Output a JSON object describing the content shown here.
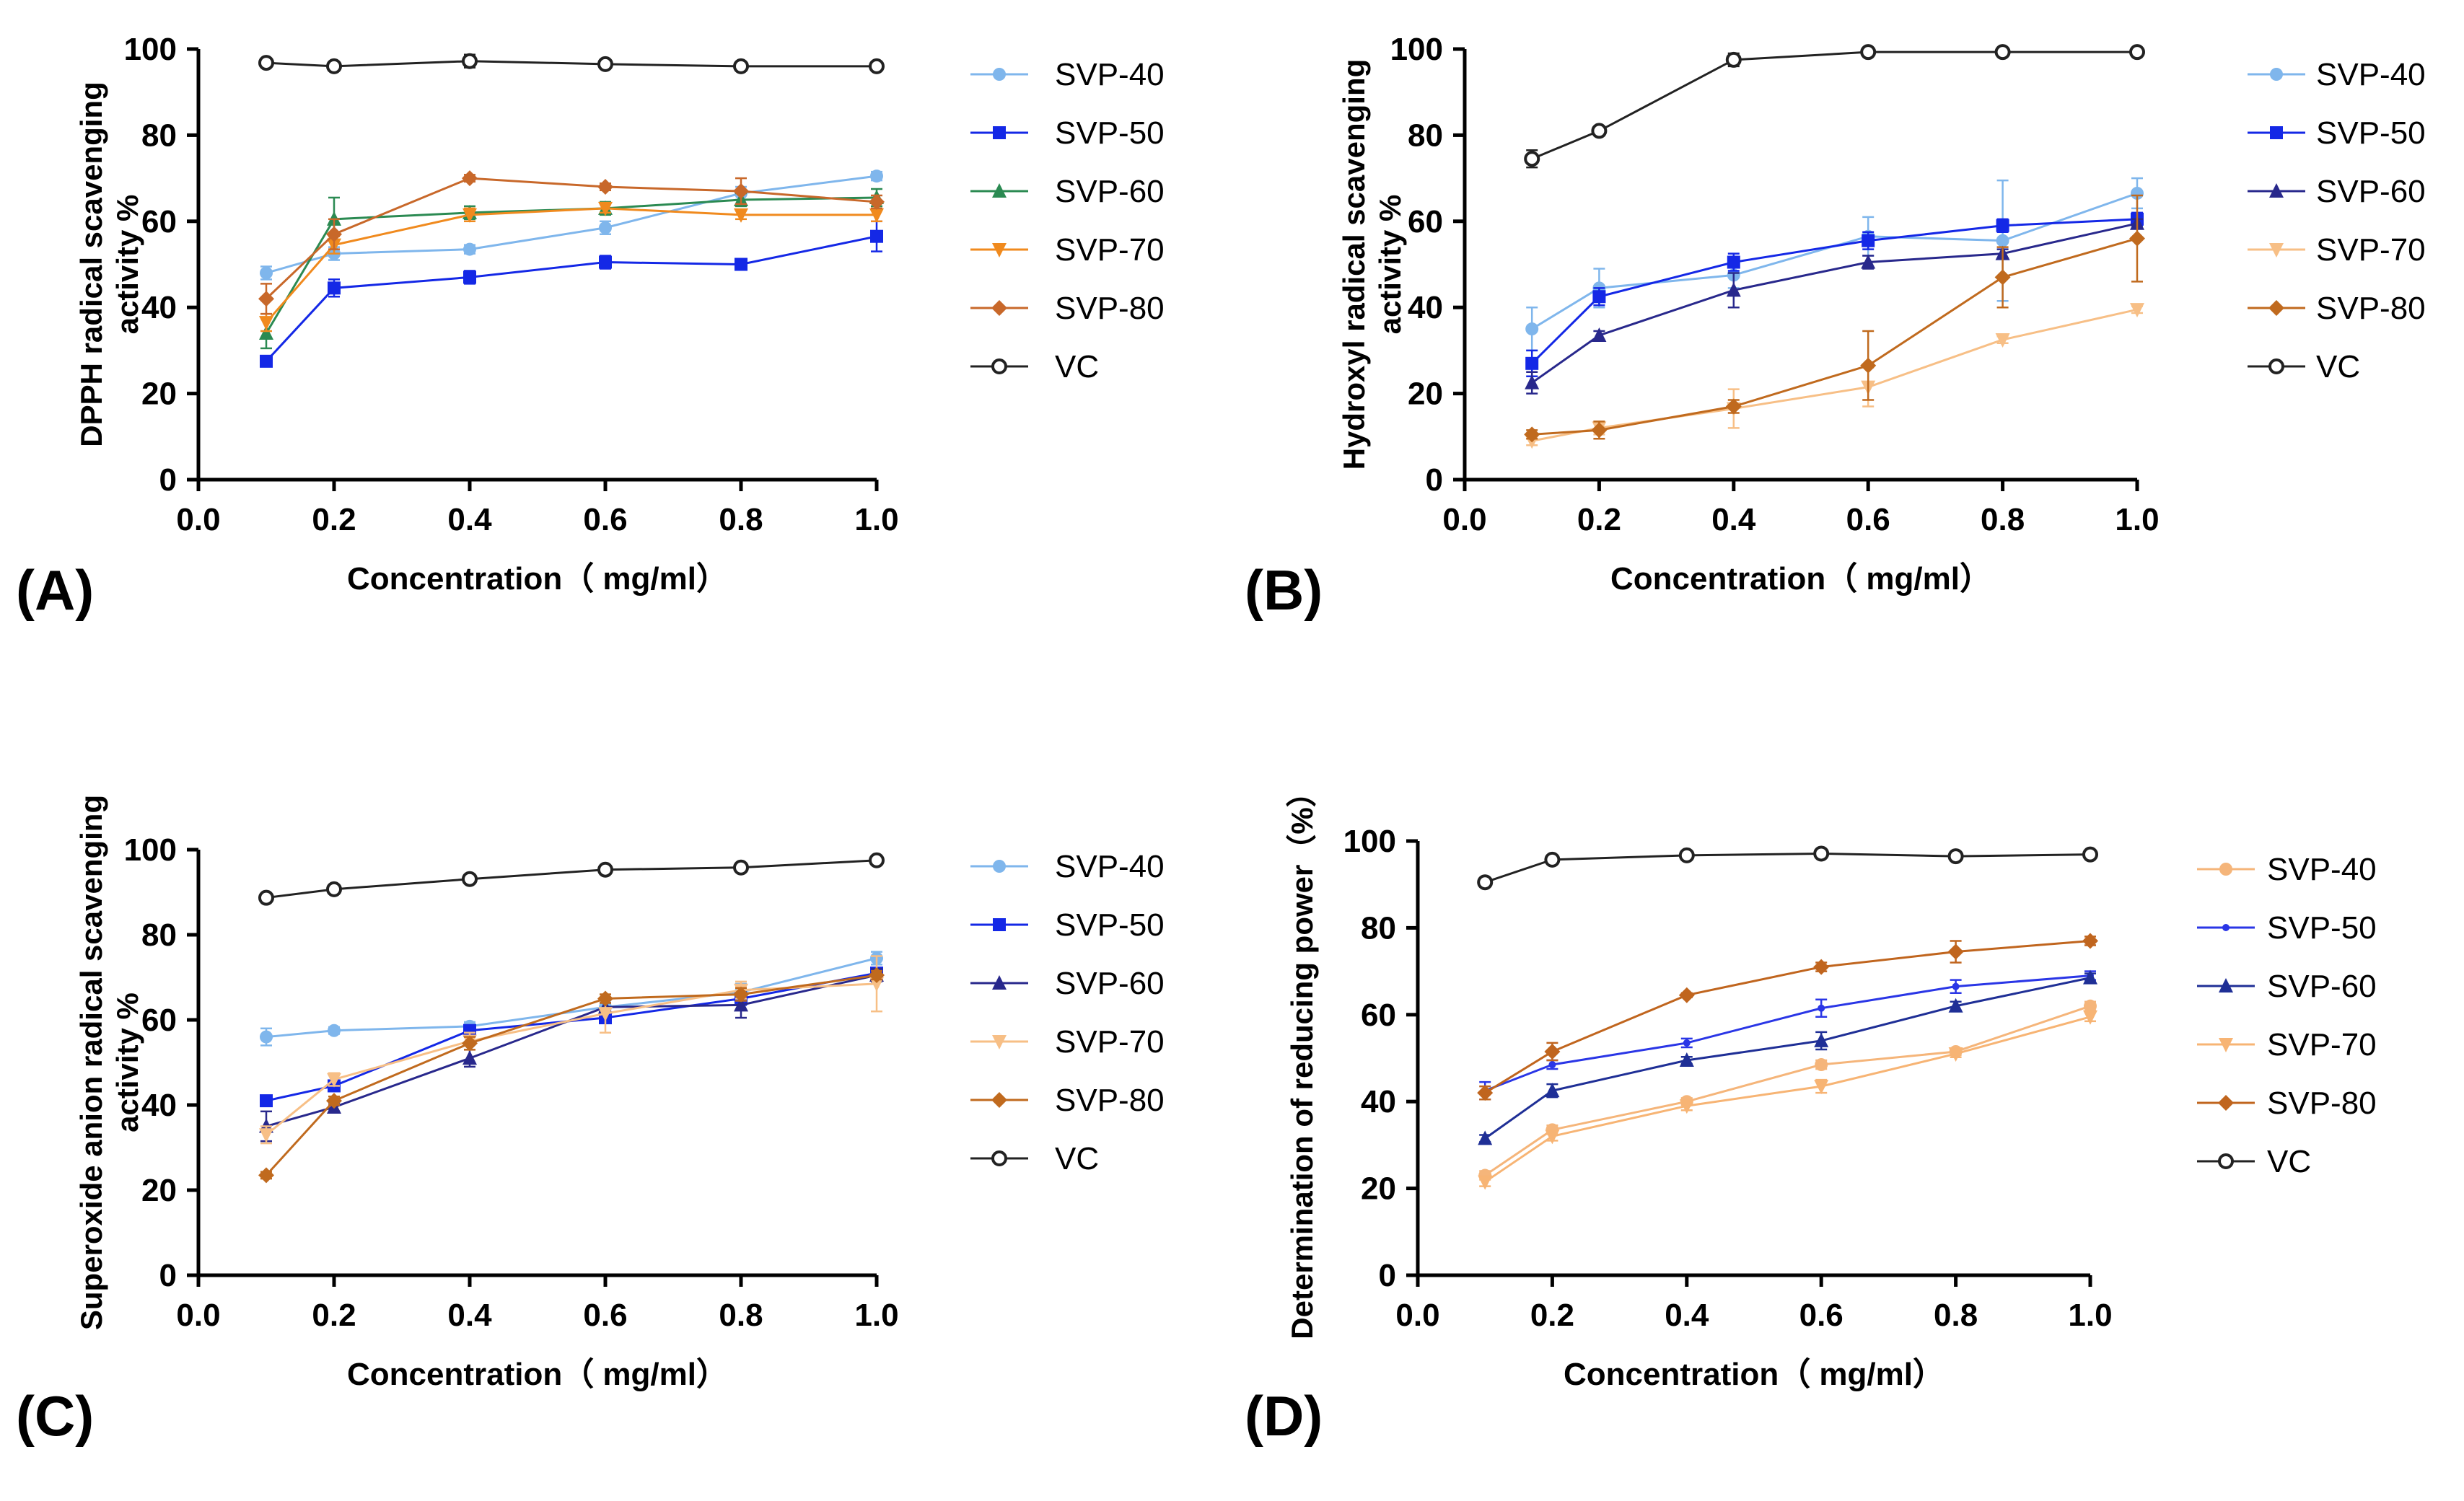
{
  "colors": {
    "SVP-40": "#7fb6ec",
    "SVP-50": "#1428e6",
    "SVP-60": "#2b8a52",
    "SVP-70": "#f08a1e",
    "SVP-80": "#c8682a",
    "VC": "#222222",
    "C-SVP-60": "#28288c",
    "C-SVP-70": "#f7bf86",
    "C-SVP-80": "#c06a1e",
    "D-SVP-40": "#f5b57a",
    "D-SVP-50": "#2a36e6",
    "D-SVP-60": "#1f2f96",
    "D-SVP-70": "#f7b474",
    "D-SVP-80": "#c0651e",
    "axis": "#000000"
  },
  "chart_data": [
    {
      "type": "line",
      "panel_label": "(A)",
      "xlabel": "Concentration（ mg/ml）",
      "ylabel_lines": [
        "DPPH radical scavenging",
        "activity %"
      ],
      "xlim": [
        0.0,
        1.0
      ],
      "ylim": [
        0,
        100
      ],
      "x_ticks": [
        "0.0",
        "0.2",
        "0.4",
        "0.6",
        "0.8",
        "1.0"
      ],
      "y_ticks": [
        "0",
        "20",
        "40",
        "60",
        "80",
        "100"
      ],
      "x": [
        0.1,
        0.2,
        0.4,
        0.6,
        0.8,
        1.0
      ],
      "series": [
        {
          "name": "SVP-40",
          "marker": "circle",
          "values": [
            48,
            52.5,
            53.5,
            58.5,
            66.5,
            70.5
          ],
          "errors": [
            1.5,
            1.5,
            1,
            1.5,
            1.5,
            1
          ],
          "color_key": "SVP-40"
        },
        {
          "name": "SVP-50",
          "marker": "square",
          "values": [
            27.5,
            44.5,
            47,
            50.5,
            50,
            56.5
          ],
          "errors": [
            1,
            2,
            1.5,
            1.5,
            1,
            3.5
          ],
          "color_key": "SVP-50"
        },
        {
          "name": "SVP-60",
          "marker": "triangle",
          "values": [
            34,
            60.5,
            62,
            63,
            65,
            65.5
          ],
          "errors": [
            3.5,
            5,
            1.5,
            1.5,
            1.5,
            2
          ],
          "color_key": "SVP-60"
        },
        {
          "name": "SVP-70",
          "marker": "triangle-down",
          "values": [
            36.5,
            54.5,
            61.5,
            63,
            61.5,
            61.5
          ],
          "errors": [
            2,
            2,
            1.5,
            1,
            1,
            1.5
          ],
          "color_key": "SVP-70"
        },
        {
          "name": "SVP-80",
          "marker": "diamond",
          "values": [
            42,
            57,
            70,
            68,
            67,
            64.5
          ],
          "errors": [
            3.5,
            3.5,
            0.8,
            0.8,
            3,
            1.5
          ],
          "color_key": "SVP-80"
        },
        {
          "name": "VC",
          "marker": "open-circle",
          "values": [
            96.8,
            96,
            97.2,
            96.5,
            96,
            96
          ],
          "errors": [
            0.5,
            0.5,
            1.5,
            0.5,
            0.5,
            0.5
          ],
          "color_key": "VC"
        }
      ]
    },
    {
      "type": "line",
      "panel_label": "(B)",
      "xlabel": "Concentration（ mg/ml）",
      "ylabel_lines": [
        "Hydroxyl radical scavenging",
        "activity %"
      ],
      "xlim": [
        0.0,
        1.0
      ],
      "ylim": [
        0,
        100
      ],
      "x_ticks": [
        "0.0",
        "0.2",
        "0.4",
        "0.6",
        "0.8",
        "1.0"
      ],
      "y_ticks": [
        "0",
        "20",
        "40",
        "60",
        "80",
        "100"
      ],
      "x": [
        0.1,
        0.2,
        0.4,
        0.6,
        0.8,
        1.0
      ],
      "series": [
        {
          "name": "SVP-40",
          "marker": "circle",
          "values": [
            35,
            44.5,
            47.5,
            56.5,
            55.5,
            66.5
          ],
          "errors": [
            5,
            4.5,
            3,
            4.5,
            14,
            3.5
          ],
          "color_key": "SVP-40"
        },
        {
          "name": "SVP-50",
          "marker": "square",
          "values": [
            27,
            42.5,
            50.5,
            55.5,
            59,
            60.5
          ],
          "errors": [
            3,
            2,
            2,
            2,
            1.5,
            1.5
          ],
          "color_key": "SVP-50"
        },
        {
          "name": "SVP-60",
          "marker": "triangle",
          "values": [
            22.5,
            33.5,
            44,
            50.5,
            52.5,
            59.5
          ],
          "errors": [
            2.5,
            1,
            4,
            1.5,
            1,
            1
          ],
          "color_key": "C-SVP-60"
        },
        {
          "name": "SVP-70",
          "marker": "triangle-down",
          "values": [
            9,
            12,
            16.5,
            21.5,
            32.5,
            39.5
          ],
          "errors": [
            1,
            1.5,
            4.5,
            4.5,
            0.8,
            0.8
          ],
          "color_key": "C-SVP-70"
        },
        {
          "name": "SVP-80",
          "marker": "diamond",
          "values": [
            10.5,
            11.5,
            17,
            26.5,
            47,
            56
          ],
          "errors": [
            1,
            2,
            1.5,
            8,
            7,
            10
          ],
          "color_key": "C-SVP-80"
        },
        {
          "name": "VC",
          "marker": "open-circle",
          "values": [
            74.5,
            81,
            97.5,
            99.3,
            99.3,
            99.3
          ],
          "errors": [
            2,
            1,
            1.5,
            0.5,
            0.5,
            0.5
          ],
          "color_key": "VC"
        }
      ]
    },
    {
      "type": "line",
      "panel_label": "(C)",
      "xlabel": "Concentration（ mg/ml）",
      "ylabel_lines": [
        "Superoxide anion  radical scavenging",
        "activity %"
      ],
      "xlim": [
        0.0,
        1.0
      ],
      "ylim": [
        0,
        100
      ],
      "x_ticks": [
        "0.0",
        "0.2",
        "0.4",
        "0.6",
        "0.8",
        "1.0"
      ],
      "y_ticks": [
        "0",
        "20",
        "40",
        "60",
        "80",
        "100"
      ],
      "x": [
        0.1,
        0.2,
        0.4,
        0.6,
        0.8,
        1.0
      ],
      "series": [
        {
          "name": "SVP-40",
          "marker": "circle",
          "values": [
            56,
            57.5,
            58.5,
            63,
            66.5,
            74.5
          ],
          "errors": [
            2,
            0.8,
            1,
            1.5,
            2,
            1.5
          ],
          "color_key": "SVP-40"
        },
        {
          "name": "SVP-50",
          "marker": "square",
          "values": [
            41,
            44.5,
            57.5,
            60.5,
            65,
            71
          ],
          "errors": [
            1,
            1,
            1,
            1,
            1.5,
            1
          ],
          "color_key": "SVP-50"
        },
        {
          "name": "SVP-60",
          "marker": "triangle",
          "values": [
            35,
            39.5,
            51,
            63,
            63.5,
            70.5
          ],
          "errors": [
            3.5,
            1,
            2,
            1,
            3,
            1.5
          ],
          "color_key": "C-SVP-60"
        },
        {
          "name": "SVP-70",
          "marker": "triangle-down",
          "values": [
            33,
            46,
            55,
            61.5,
            67,
            68.5
          ],
          "errors": [
            2,
            1.5,
            2,
            4.5,
            2,
            6.5
          ],
          "color_key": "C-SVP-70"
        },
        {
          "name": "SVP-80",
          "marker": "diamond",
          "values": [
            23.5,
            41,
            54.5,
            65,
            66,
            70.5
          ],
          "errors": [
            0.8,
            1,
            1.5,
            1,
            1.5,
            1
          ],
          "color_key": "C-SVP-80"
        },
        {
          "name": "VC",
          "marker": "open-circle",
          "values": [
            88.7,
            90.7,
            93.1,
            95.3,
            95.8,
            97.5
          ],
          "errors": [
            0.5,
            0.5,
            0.5,
            0.5,
            0.5,
            0.5
          ],
          "color_key": "VC"
        }
      ]
    },
    {
      "type": "line",
      "panel_label": "(D)",
      "xlabel": "Concentration（ mg/ml）",
      "ylabel_lines": [
        "Determination of reducing power（%）"
      ],
      "xlim": [
        0.0,
        1.0
      ],
      "ylim": [
        0,
        100
      ],
      "x_ticks": [
        "0.0",
        "0.2",
        "0.4",
        "0.6",
        "0.8",
        "1.0"
      ],
      "y_ticks": [
        "0",
        "20",
        "40",
        "60",
        "80",
        "100"
      ],
      "x": [
        0.1,
        0.2,
        0.4,
        0.6,
        0.8,
        1.0
      ],
      "series": [
        {
          "name": "SVP-40",
          "marker": "circle",
          "values": [
            23,
            33.5,
            40,
            48.5,
            51.5,
            62
          ],
          "errors": [
            1,
            1,
            0.8,
            1,
            0.8,
            1
          ],
          "color_key": "D-SVP-40"
        },
        {
          "name": "SVP-50",
          "marker": "small-circle",
          "values": [
            42.5,
            48.5,
            53.5,
            61.5,
            66.5,
            69
          ],
          "errors": [
            2,
            1,
            1,
            2,
            1.5,
            1
          ],
          "color_key": "D-SVP-50"
        },
        {
          "name": "SVP-60",
          "marker": "triangle",
          "values": [
            31.5,
            42.5,
            49.5,
            54,
            62,
            68.5
          ],
          "errors": [
            0.8,
            1.5,
            0.8,
            2,
            1,
            1
          ],
          "color_key": "D-SVP-60"
        },
        {
          "name": "SVP-70",
          "marker": "triangle-down",
          "values": [
            21.5,
            32,
            39,
            43.5,
            51,
            59.5
          ],
          "errors": [
            1,
            1,
            1,
            1.5,
            0.8,
            1
          ],
          "color_key": "D-SVP-70"
        },
        {
          "name": "SVP-80",
          "marker": "diamond",
          "values": [
            42,
            51.5,
            64.5,
            71,
            74.5,
            77
          ],
          "errors": [
            1.5,
            2,
            0.5,
            1,
            2.5,
            1
          ],
          "color_key": "D-SVP-80"
        },
        {
          "name": "VC",
          "marker": "open-circle",
          "values": [
            90.5,
            95.7,
            96.7,
            97.1,
            96.5,
            96.9
          ],
          "errors": [
            0.5,
            0.5,
            0.5,
            0.5,
            0.5,
            0.5
          ],
          "color_key": "VC"
        }
      ]
    }
  ]
}
